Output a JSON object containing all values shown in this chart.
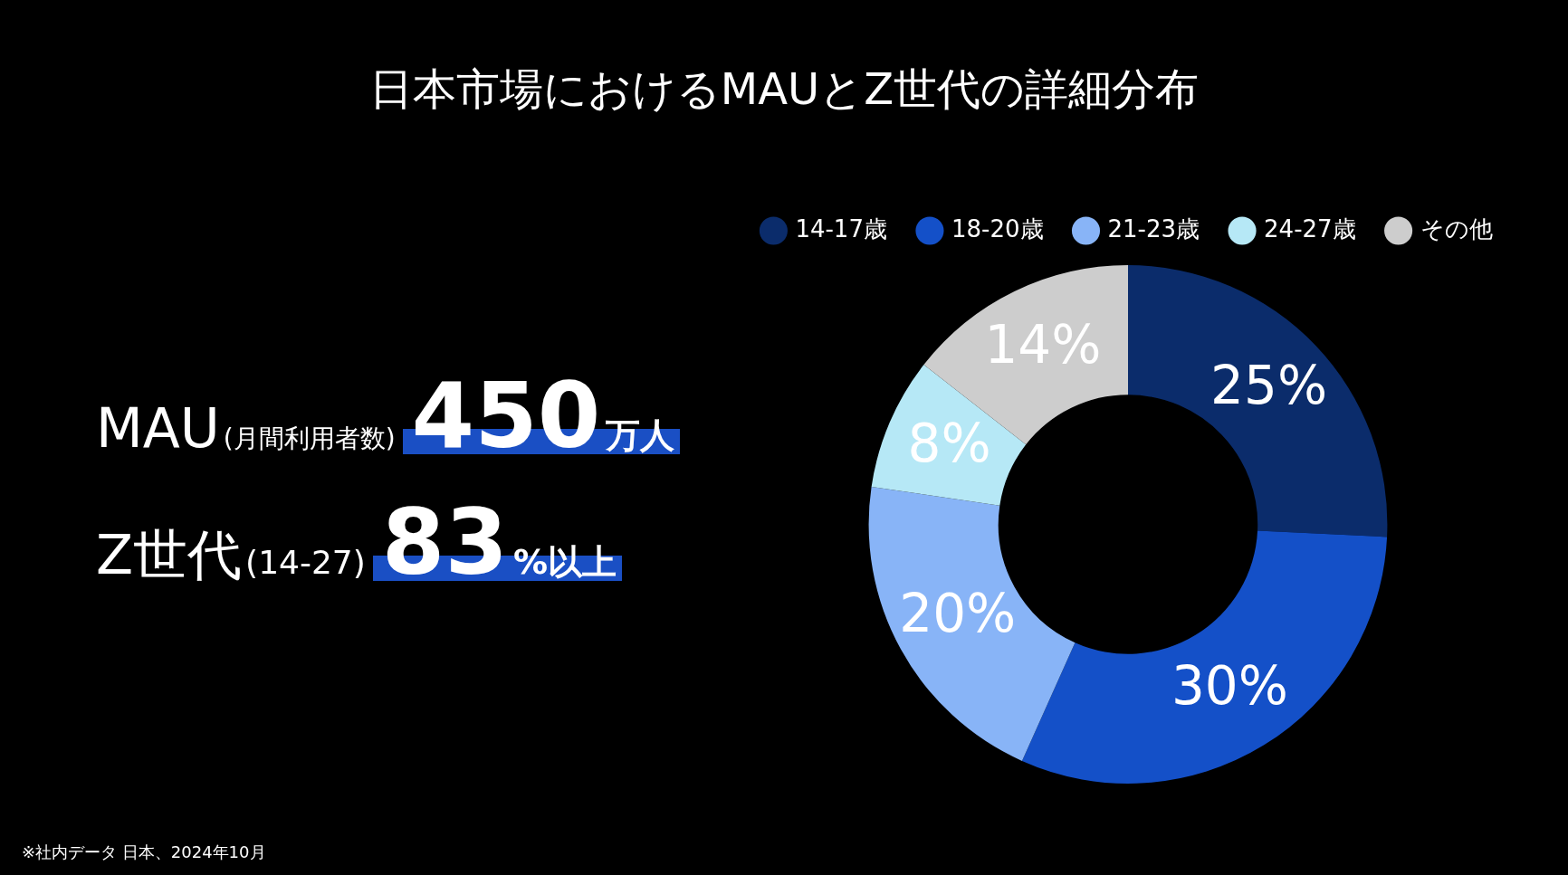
{
  "chart_data": {
    "type": "donut",
    "title": "日本市場におけるMAUとZ世代の詳細分布",
    "categories": [
      "14-17歳",
      "18-20歳",
      "21-23歳",
      "24-27歳",
      "その他"
    ],
    "values": [
      25,
      30,
      20,
      8,
      14
    ],
    "colors": [
      "#0b2c6b",
      "#1450c8",
      "#88b4f7",
      "#b6e8f6",
      "#cdcdcd"
    ],
    "value_labels": [
      "25%",
      "30%",
      "20%",
      "8%",
      "14%"
    ],
    "legend": "top right",
    "annotations": [
      "MAU",
      "(月間利用者数)",
      "450",
      "万人",
      "Z世代",
      "(14-27)",
      "83",
      "%以上",
      "※社内データ 日本、2024年10月"
    ]
  }
}
